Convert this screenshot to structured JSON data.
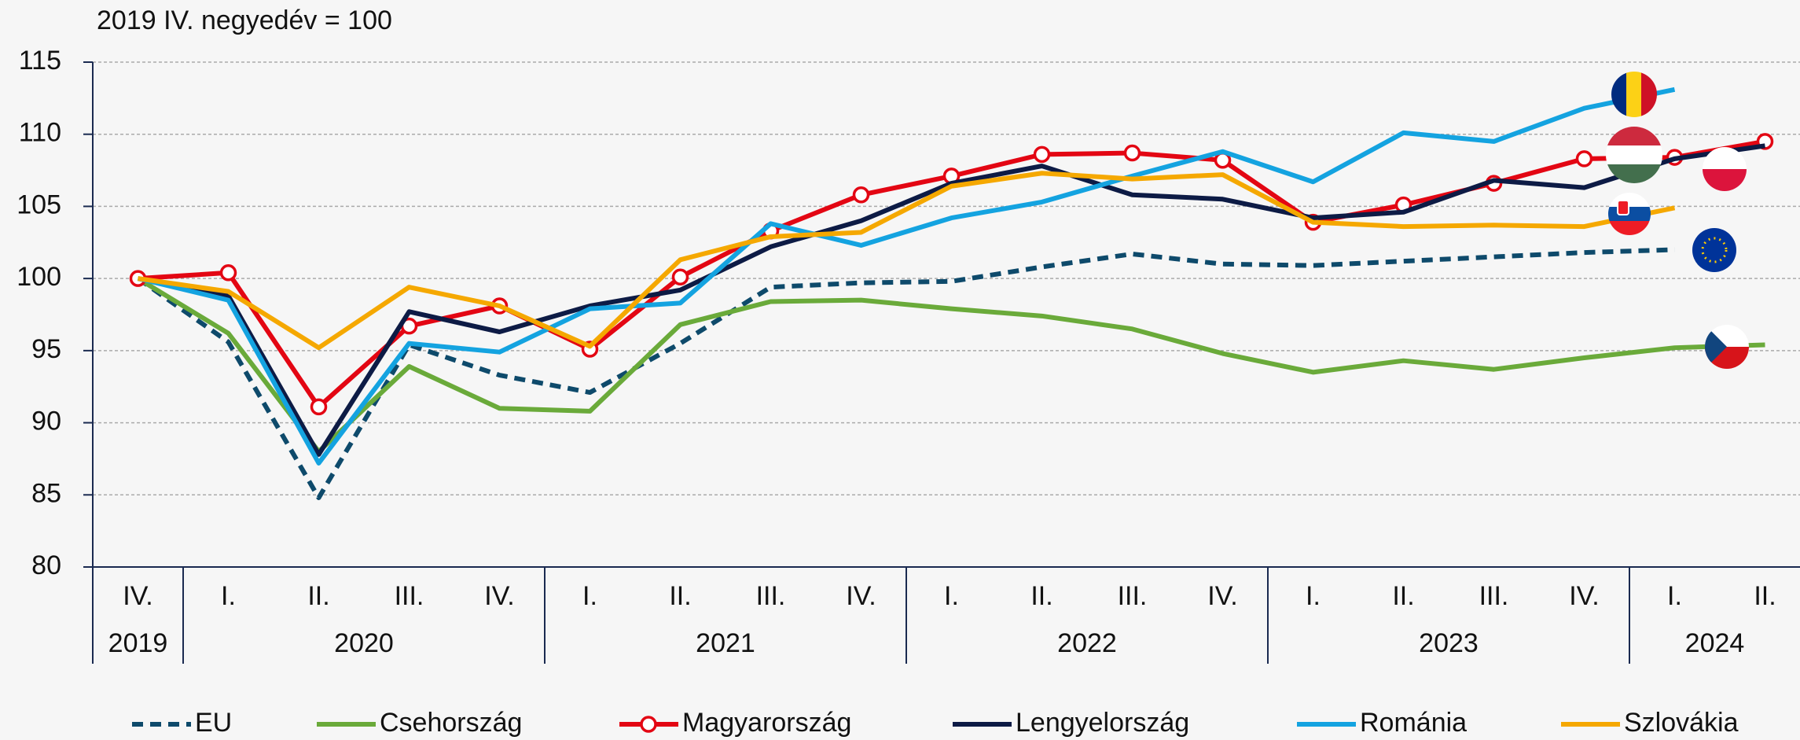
{
  "chart_data": {
    "type": "line",
    "y_label": "2019 IV. negyedév = 100",
    "categories": [
      "IV.",
      "I.",
      "II.",
      "III.",
      "IV.",
      "I.",
      "II.",
      "III.",
      "IV.",
      "I.",
      "II.",
      "III.",
      "IV.",
      "I.",
      "II.",
      "III.",
      "IV.",
      "I.",
      "II."
    ],
    "year_groups": [
      {
        "label": "2019",
        "span": 1
      },
      {
        "label": "2020",
        "span": 4
      },
      {
        "label": "2021",
        "span": 4
      },
      {
        "label": "2022",
        "span": 4
      },
      {
        "label": "2023",
        "span": 4
      },
      {
        "label": "2024",
        "span": 2
      }
    ],
    "ylim": [
      80,
      115
    ],
    "yticks": [
      80,
      85,
      90,
      95,
      100,
      105,
      110,
      115
    ],
    "grid": true,
    "series": [
      {
        "name": "EU",
        "color": "#0e4a6b",
        "dashed": true,
        "values": [
          100,
          95.6,
          84.8,
          95.4,
          93.3,
          92.1,
          95.5,
          99.4,
          99.7,
          99.8,
          100.8,
          101.7,
          101.0,
          100.9,
          101.2,
          101.5,
          101.8,
          102.0,
          null
        ]
      },
      {
        "name": "Csehország",
        "color": "#6aaa3a",
        "values": [
          100,
          96.2,
          88.0,
          93.9,
          91.0,
          90.8,
          96.8,
          98.4,
          98.5,
          97.9,
          97.4,
          96.5,
          94.8,
          93.5,
          94.3,
          93.7,
          94.5,
          95.2,
          95.4
        ]
      },
      {
        "name": "Magyarország",
        "color": "#e30613",
        "marker": "circle",
        "values": [
          100,
          100.4,
          91.1,
          96.7,
          98.1,
          95.1,
          100.1,
          103.3,
          105.8,
          107.1,
          108.6,
          108.7,
          108.2,
          103.9,
          105.1,
          106.6,
          108.3,
          108.4,
          109.5
        ]
      },
      {
        "name": "Lengyelország",
        "color": "#0d1b45",
        "values": [
          100,
          98.8,
          87.8,
          97.7,
          96.3,
          98.1,
          99.2,
          102.2,
          104.0,
          106.6,
          107.8,
          105.8,
          105.5,
          104.2,
          104.6,
          106.8,
          106.3,
          108.3,
          109.2
        ]
      },
      {
        "name": "Románia",
        "color": "#14a3e0",
        "values": [
          100,
          98.5,
          87.2,
          95.5,
          94.9,
          97.9,
          98.3,
          103.8,
          102.3,
          104.2,
          105.3,
          107.1,
          108.8,
          106.7,
          110.1,
          109.5,
          111.8,
          113.1,
          null
        ]
      },
      {
        "name": "Szlovákia",
        "color": "#f5a800",
        "values": [
          100,
          99.1,
          95.2,
          99.4,
          98.1,
          95.3,
          101.3,
          102.9,
          103.2,
          106.4,
          107.3,
          106.9,
          107.2,
          103.9,
          103.6,
          103.7,
          103.6,
          104.9,
          null
        ]
      }
    ]
  }
}
